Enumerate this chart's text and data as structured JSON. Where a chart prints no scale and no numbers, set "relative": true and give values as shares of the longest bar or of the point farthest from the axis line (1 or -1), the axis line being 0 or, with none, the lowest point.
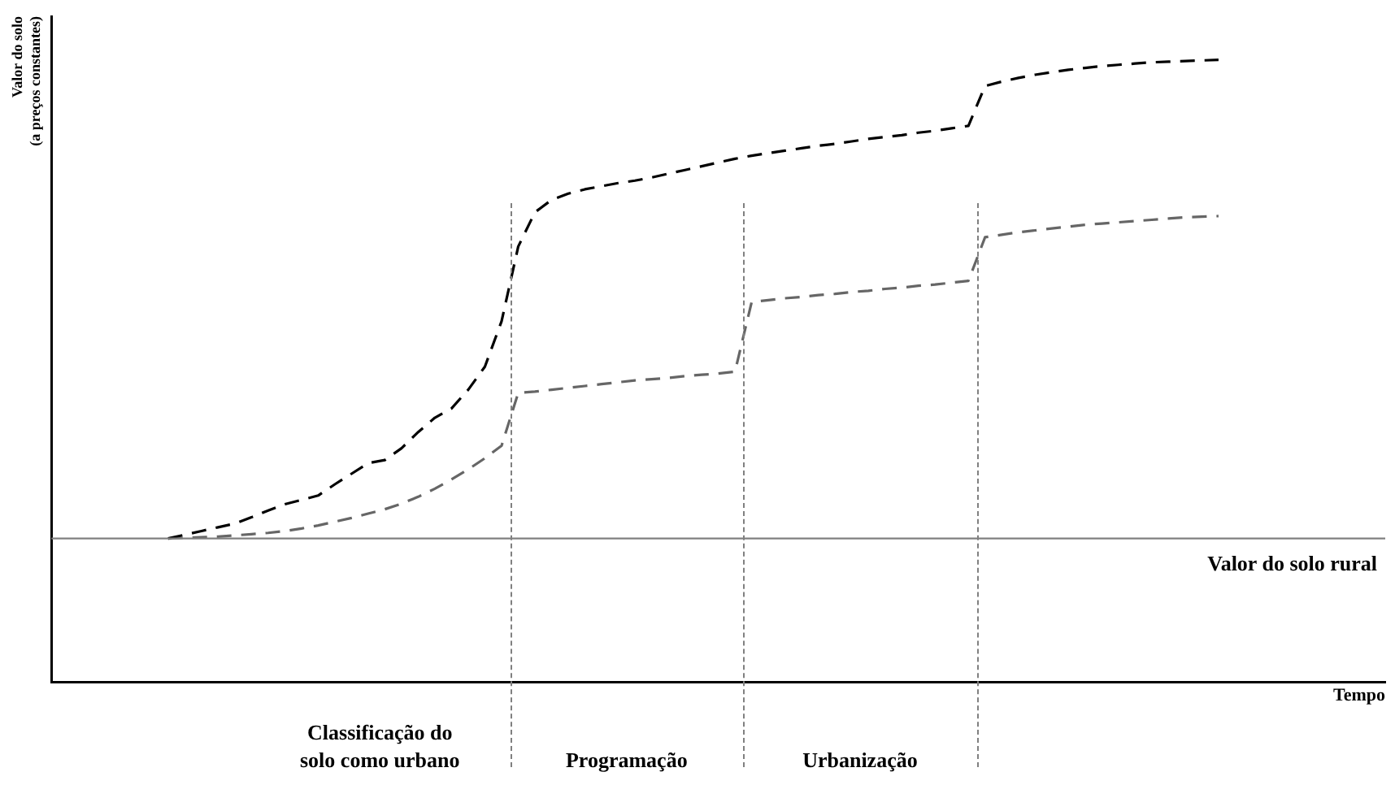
{
  "chart_data": {
    "type": "line",
    "relative": true,
    "ylabel": "Valor do solo\n(a preços constantes)",
    "xlabel": "Tempo",
    "tick_labels": false,
    "line_style": "dashed",
    "legend": false,
    "grid": false,
    "categories": [
      null,
      null,
      null,
      null,
      null,
      null,
      null,
      null,
      null,
      null,
      null,
      null,
      null,
      null,
      null,
      null,
      null,
      null,
      null,
      null,
      null,
      null,
      null,
      null,
      null,
      null,
      null,
      null,
      null,
      null,
      null,
      null,
      null,
      null,
      null,
      null,
      null,
      null,
      null,
      null,
      null,
      null,
      null,
      null,
      null,
      null,
      null,
      null,
      null,
      null,
      null,
      null,
      null,
      null,
      null,
      null,
      null,
      null,
      null,
      null,
      null,
      null,
      null,
      null,
      null,
      null,
      null,
      null,
      null,
      null,
      null,
      null,
      null,
      null,
      null,
      null,
      null,
      null,
      null,
      null,
      null
    ],
    "series": [
      {
        "color": "#000000",
        "values": [
          null,
          null,
          null,
          null,
          null,
          null,
          null,
          0.231,
          0.237,
          0.243,
          0.249,
          0.255,
          0.265,
          0.276,
          0.286,
          0.293,
          0.3,
          0.318,
          0.335,
          0.352,
          0.357,
          0.376,
          0.402,
          0.425,
          0.44,
          0.47,
          0.507,
          0.58,
          0.7,
          0.755,
          0.775,
          0.785,
          0.792,
          0.797,
          0.802,
          0.806,
          0.811,
          0.817,
          0.823,
          0.829,
          0.835,
          0.841,
          0.846,
          0.85,
          0.854,
          0.858,
          0.862,
          0.865,
          0.869,
          0.873,
          0.876,
          0.879,
          0.883,
          0.886,
          0.89,
          0.894,
          0.958,
          0.965,
          0.971,
          0.976,
          0.98,
          0.984,
          0.987,
          0.99,
          0.992,
          0.994,
          0.996,
          0.997,
          0.998,
          0.999,
          1,
          null,
          null,
          null,
          null,
          null,
          null,
          null,
          null,
          null,
          null
        ]
      },
      {
        "color": "#666666",
        "values": [
          null,
          null,
          null,
          null,
          null,
          null,
          null,
          0.231,
          0.232,
          0.233,
          0.234,
          0.236,
          0.238,
          0.24,
          0.243,
          0.247,
          0.252,
          0.258,
          0.264,
          0.271,
          0.278,
          0.287,
          0.298,
          0.311,
          0.326,
          0.342,
          0.36,
          0.38,
          0.465,
          0.467,
          0.47,
          0.473,
          0.476,
          0.479,
          0.482,
          0.485,
          0.487,
          0.489,
          0.492,
          0.494,
          0.496,
          0.499,
          0.611,
          0.614,
          0.617,
          0.619,
          0.622,
          0.624,
          0.627,
          0.629,
          0.632,
          0.634,
          0.637,
          0.639,
          0.642,
          0.645,
          0.715,
          0.719,
          0.723,
          0.726,
          0.729,
          0.732,
          0.735,
          0.737,
          0.739,
          0.741,
          0.743,
          0.745,
          0.747,
          0.748,
          0.749,
          null,
          null,
          null,
          null,
          null,
          null,
          null,
          null,
          null,
          null
        ]
      }
    ],
    "ref_lines": [
      {
        "axis": "y",
        "value": 0.231,
        "label": "Valor do solo rural",
        "color": "#808080",
        "line_style": "solid"
      }
    ],
    "annotations": [
      "Classificação do\nsolo como urbano",
      "Programação",
      "Urbanização"
    ]
  }
}
